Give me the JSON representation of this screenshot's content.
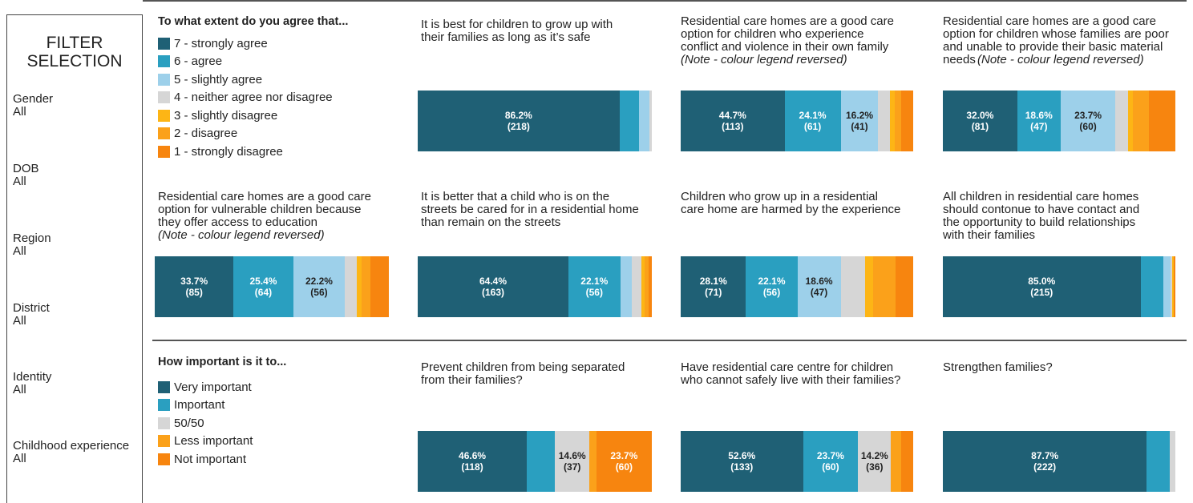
{
  "filter_panel": {
    "title_line1": "FILTER",
    "title_line2": "SELECTION",
    "filters": [
      {
        "label": "Gender",
        "value": "All"
      },
      {
        "label": "DOB",
        "value": "All"
      },
      {
        "label": "Region",
        "value": "All"
      },
      {
        "label": "District",
        "value": "All"
      },
      {
        "label": "Identity",
        "value": "All"
      },
      {
        "label": "Childhood experience",
        "value": "All"
      }
    ]
  },
  "colors": {
    "7": "#1f6075",
    "6": "#2a9fc0",
    "5": "#9dd0ea",
    "4": "#d6d6d6",
    "3": "#fdb515",
    "2": "#fba11a",
    "1": "#f7850f"
  },
  "agree_legend": {
    "heading": "To what extent do you agree that...",
    "items": [
      {
        "label": "7 - strongly agree",
        "color": "#1f6075"
      },
      {
        "label": "6 - agree",
        "color": "#2a9fc0"
      },
      {
        "label": "5 - slightly agree",
        "color": "#9dd0ea"
      },
      {
        "label": "4 - neither agree nor disagree",
        "color": "#d6d6d6"
      },
      {
        "label": "3 - slightly disagree",
        "color": "#fdb515"
      },
      {
        "label": "2 - disagree",
        "color": "#fba11a"
      },
      {
        "label": "1 - strongly disagree",
        "color": "#f7850f"
      }
    ]
  },
  "importance_legend": {
    "heading": "How important is it to...",
    "items": [
      {
        "label": "Very important",
        "color": "#1f6075"
      },
      {
        "label": "Important",
        "color": "#2a9fc0"
      },
      {
        "label": "50/50",
        "color": "#d6d6d6"
      },
      {
        "label": "Less important",
        "color": "#fba11a"
      },
      {
        "label": "Not important",
        "color": "#f7850f"
      }
    ]
  },
  "questions": [
    {
      "title": "It is best for children to grow up with\ntheir families as long as it’s safe",
      "note": "",
      "segments": [
        {
          "level": "7",
          "pct": 86.2,
          "label": "86.2%",
          "count": "(218)"
        },
        {
          "level": "6",
          "pct": 8.3,
          "label": "",
          "count": ""
        },
        {
          "level": "5",
          "pct": 4.5,
          "label": "",
          "count": ""
        },
        {
          "level": "4",
          "pct": 1.0,
          "label": "",
          "count": ""
        }
      ]
    },
    {
      "title": "Residential care homes are a good care\noption for children who experience\nconflict and violence in their own family",
      "note": "(Note - colour legend reversed)",
      "segments": [
        {
          "level": "7",
          "pct": 44.7,
          "label": "44.7%",
          "count": "(113)"
        },
        {
          "level": "6",
          "pct": 24.1,
          "label": "24.1%",
          "count": "(61)"
        },
        {
          "level": "5",
          "pct": 16.2,
          "label": "16.2%",
          "count": "(41)"
        },
        {
          "level": "4",
          "pct": 5.0,
          "label": "",
          "count": ""
        },
        {
          "level": "3",
          "pct": 2.0,
          "label": "",
          "count": ""
        },
        {
          "level": "2",
          "pct": 3.0,
          "label": "",
          "count": ""
        },
        {
          "level": "1",
          "pct": 5.0,
          "label": "",
          "count": ""
        }
      ]
    },
    {
      "title": "Residential care homes are a good care\noption for children whose families are poor\nand unable to provide their basic material\nneeds",
      "note": "(Note - colour legend reversed)",
      "segments": [
        {
          "level": "7",
          "pct": 32.0,
          "label": "32.0%",
          "count": "(81)"
        },
        {
          "level": "6",
          "pct": 18.6,
          "label": "18.6%",
          "count": "(47)"
        },
        {
          "level": "5",
          "pct": 23.7,
          "label": "23.7%",
          "count": "(60)"
        },
        {
          "level": "4",
          "pct": 5.5,
          "label": "",
          "count": ""
        },
        {
          "level": "3",
          "pct": 2.0,
          "label": "",
          "count": ""
        },
        {
          "level": "2",
          "pct": 7.0,
          "label": "",
          "count": ""
        },
        {
          "level": "1",
          "pct": 11.2,
          "label": "",
          "count": ""
        }
      ]
    },
    {
      "title": "Residential care homes are a good care\noption for vulnerable children because\nthey offer access to education",
      "note": "(Note - colour legend reversed)",
      "segments": [
        {
          "level": "7",
          "pct": 33.7,
          "label": "33.7%",
          "count": "(85)"
        },
        {
          "level": "6",
          "pct": 25.4,
          "label": "25.4%",
          "count": "(64)"
        },
        {
          "level": "5",
          "pct": 22.2,
          "label": "22.2%",
          "count": "(56)"
        },
        {
          "level": "4",
          "pct": 5.0,
          "label": "",
          "count": ""
        },
        {
          "level": "3",
          "pct": 2.0,
          "label": "",
          "count": ""
        },
        {
          "level": "2",
          "pct": 4.0,
          "label": "",
          "count": ""
        },
        {
          "level": "1",
          "pct": 7.7,
          "label": "",
          "count": ""
        }
      ]
    },
    {
      "title": "It is better that a child who is on the\nstreets be cared for in a residential home\nthan remain on the streets",
      "note": "",
      "segments": [
        {
          "level": "7",
          "pct": 64.4,
          "label": "64.4%",
          "count": "(163)"
        },
        {
          "level": "6",
          "pct": 22.1,
          "label": "22.1%",
          "count": "(56)"
        },
        {
          "level": "5",
          "pct": 5.0,
          "label": "",
          "count": ""
        },
        {
          "level": "4",
          "pct": 4.0,
          "label": "",
          "count": ""
        },
        {
          "level": "3",
          "pct": 1.5,
          "label": "",
          "count": ""
        },
        {
          "level": "2",
          "pct": 1.5,
          "label": "",
          "count": ""
        },
        {
          "level": "1",
          "pct": 1.5,
          "label": "",
          "count": ""
        }
      ]
    },
    {
      "title": "Children who grow up in a residential\ncare home are harmed by the experience",
      "note": "",
      "segments": [
        {
          "level": "7",
          "pct": 28.1,
          "label": "28.1%",
          "count": "(71)"
        },
        {
          "level": "6",
          "pct": 22.1,
          "label": "22.1%",
          "count": "(56)"
        },
        {
          "level": "5",
          "pct": 18.6,
          "label": "18.6%",
          "count": "(47)"
        },
        {
          "level": "4",
          "pct": 10.5,
          "label": "",
          "count": ""
        },
        {
          "level": "3",
          "pct": 3.5,
          "label": "",
          "count": ""
        },
        {
          "level": "2",
          "pct": 9.5,
          "label": "",
          "count": ""
        },
        {
          "level": "1",
          "pct": 7.7,
          "label": "",
          "count": ""
        }
      ]
    },
    {
      "title": "All children in residential care homes\nshould contonue to have contact and\nthe opportunity to build relationships\nwith their families",
      "note": "",
      "segments": [
        {
          "level": "7",
          "pct": 85.0,
          "label": "85.0%",
          "count": "(215)"
        },
        {
          "level": "6",
          "pct": 9.8,
          "label": "",
          "count": ""
        },
        {
          "level": "5",
          "pct": 3.0,
          "label": "",
          "count": ""
        },
        {
          "level": "4",
          "pct": 0.7,
          "label": "",
          "count": ""
        },
        {
          "level": "3",
          "pct": 0.7,
          "label": "",
          "count": ""
        },
        {
          "level": "1",
          "pct": 0.8,
          "label": "",
          "count": ""
        }
      ]
    },
    {
      "title": "Prevent children from being separated\nfrom their families?",
      "note": "",
      "segments": [
        {
          "level": "7",
          "pct": 46.6,
          "label": "46.6%",
          "count": "(118)"
        },
        {
          "level": "6",
          "pct": 12.1,
          "label": "",
          "count": ""
        },
        {
          "level": "4",
          "pct": 14.6,
          "label": "14.6%",
          "count": "(37)"
        },
        {
          "level": "2",
          "pct": 3.0,
          "label": "",
          "count": ""
        },
        {
          "level": "1",
          "pct": 23.7,
          "label": "23.7%",
          "count": "(60)"
        }
      ]
    },
    {
      "title": "Have residential care centre for children\nwho cannot safely live with their families?",
      "note": "",
      "segments": [
        {
          "level": "7",
          "pct": 52.6,
          "label": "52.6%",
          "count": "(133)"
        },
        {
          "level": "6",
          "pct": 23.7,
          "label": "23.7%",
          "count": "(60)"
        },
        {
          "level": "4",
          "pct": 14.2,
          "label": "14.2%",
          "count": "(36)"
        },
        {
          "level": "2",
          "pct": 4.5,
          "label": "",
          "count": ""
        },
        {
          "level": "1",
          "pct": 5.0,
          "label": "",
          "count": ""
        }
      ]
    },
    {
      "title": "Strengthen families?",
      "note": "",
      "segments": [
        {
          "level": "7",
          "pct": 87.7,
          "label": "87.7%",
          "count": "(222)"
        },
        {
          "level": "6",
          "pct": 9.8,
          "label": "",
          "count": ""
        },
        {
          "level": "4",
          "pct": 2.5,
          "label": "",
          "count": ""
        }
      ]
    }
  ]
}
